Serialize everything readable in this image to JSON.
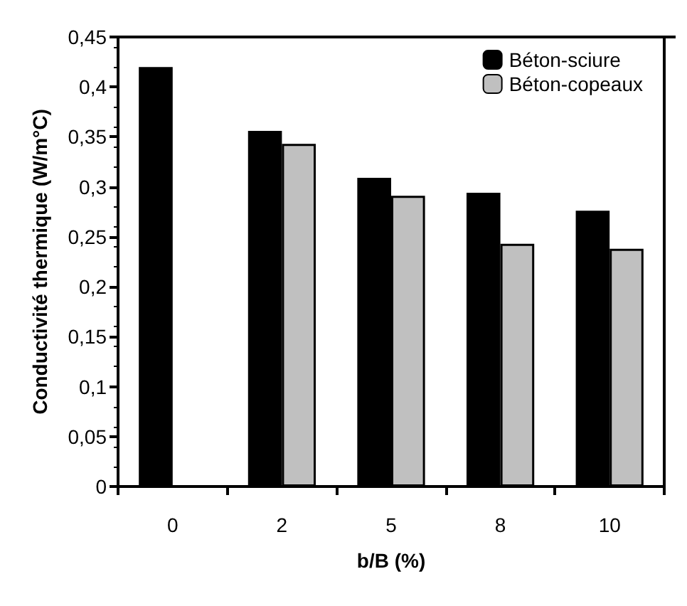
{
  "chart_data": {
    "type": "bar",
    "xlabel": "b/B (%)",
    "ylabel": "Conductivité thermique (W/m°C)",
    "categories": [
      "0",
      "2",
      "5",
      "8",
      "10"
    ],
    "series": [
      {
        "name": "Béton-sciure",
        "color": "#000000",
        "values": [
          0.42,
          0.356,
          0.309,
          0.294,
          0.276
        ]
      },
      {
        "name": "Béton-copeaux",
        "color": "#c0c0c0",
        "values": [
          null,
          0.343,
          0.291,
          0.243,
          0.238
        ]
      }
    ],
    "ylim": [
      0,
      0.45
    ],
    "yticks": [
      {
        "value": 0,
        "label": "0"
      },
      {
        "value": 0.05,
        "label": "0,05"
      },
      {
        "value": 0.1,
        "label": "0,1"
      },
      {
        "value": 0.15,
        "label": "0,15"
      },
      {
        "value": 0.2,
        "label": "0,2"
      },
      {
        "value": 0.25,
        "label": "0,25"
      },
      {
        "value": 0.3,
        "label": "0,3"
      },
      {
        "value": 0.35,
        "label": "0,35"
      },
      {
        "value": 0.4,
        "label": "0,4"
      },
      {
        "value": 0.45,
        "label": "0,45"
      }
    ],
    "grid": false,
    "legend": "top right"
  }
}
